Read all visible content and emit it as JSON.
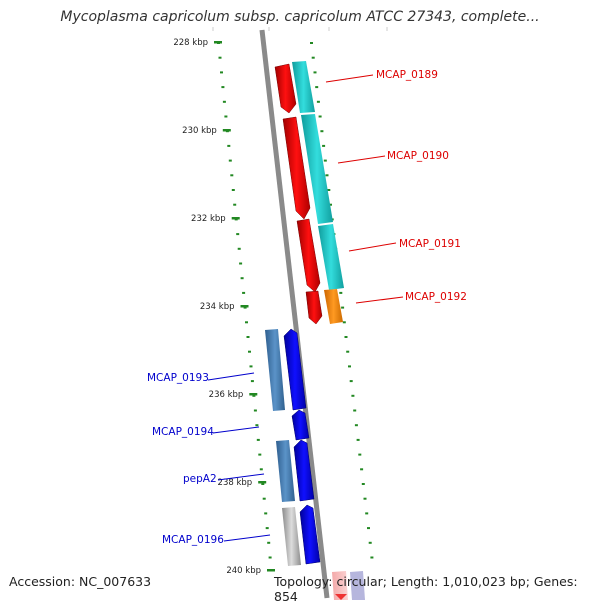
{
  "title": "Mycoplasma capricolum subsp. capricolum ATCC 27343, complete...",
  "footer": {
    "accession": "Accession: NC_007633",
    "summary": "Topology: circular; Length: 1,010,023 bp; Genes: 854"
  },
  "ticks": [
    {
      "label": "228 kbp",
      "kbp": 228
    },
    {
      "label": "230 kbp",
      "kbp": 230
    },
    {
      "label": "232 kbp",
      "kbp": 232
    },
    {
      "label": "234 kbp",
      "kbp": 234
    },
    {
      "label": "236 kbp",
      "kbp": 236
    },
    {
      "label": "238 kbp",
      "kbp": 238
    },
    {
      "label": "240 kbp",
      "kbp": 240
    }
  ],
  "gene_labels": [
    {
      "text": "MCAP_0189",
      "color": "#dd0000"
    },
    {
      "text": "MCAP_0190",
      "color": "#dd0000"
    },
    {
      "text": "MCAP_0191",
      "color": "#dd0000"
    },
    {
      "text": "MCAP_0192",
      "color": "#dd0000"
    },
    {
      "text": "MCAP_0193",
      "color": "#0000cc"
    },
    {
      "text": "MCAP_0194",
      "color": "#0000cc"
    },
    {
      "text": "pepA2",
      "color": "#0000cc"
    },
    {
      "text": "MCAP_0196",
      "color": "#0000cc"
    }
  ],
  "colors": {
    "reverse_strand": "#ee0000",
    "forward_strand": "#0000ee",
    "cyan_track": "#22cccc",
    "steelblue_track": "#4a7fb5",
    "orange_track": "#ff8800",
    "grey_track": "#bbbbbb",
    "backbone": "#888888",
    "tick_green": "#228822"
  }
}
